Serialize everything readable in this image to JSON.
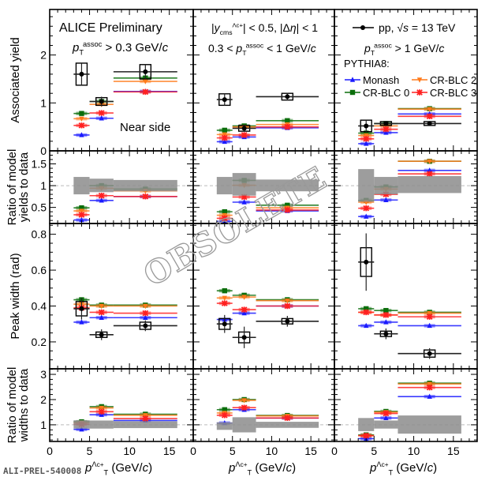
{
  "chart_data": {
    "type": "scatter",
    "title": "ALICE Preliminary",
    "x_bins": [
      [
        3,
        5
      ],
      [
        5,
        8
      ],
      [
        8,
        16
      ]
    ],
    "x_centers": [
      4,
      6.5,
      12
    ],
    "xlim": [
      0,
      18
    ],
    "x_ticks": [
      "0",
      "5",
      "10",
      "15"
    ],
    "xlabel": [
      {
        "t": "p",
        "i": true
      },
      {
        "t": "Λ",
        "sup": true
      },
      {
        "t": "c",
        "sup": true,
        "small": true
      },
      {
        "t": "+",
        "sup": true,
        "small": true
      },
      {
        "t": "T",
        "sub": true
      },
      {
        "t": " (GeV/"
      },
      {
        "t": "c",
        "i": true
      },
      {
        "t": ")"
      }
    ],
    "series_styles": {
      "data": {
        "color": "#000000",
        "marker": "circle"
      },
      "Monash": {
        "color": "#1a1aff",
        "marker": "triangle-up"
      },
      "CR-BLC 0": {
        "color": "#0b6e0b",
        "marker": "square"
      },
      "CR-BLC 2": {
        "color": "#ff7a1a",
        "marker": "triangle-down"
      },
      "CR-BLC 3": {
        "color": "#ff2020",
        "marker": "star"
      }
    },
    "rows": [
      {
        "ylabel": [
          "Associated yield"
        ],
        "ylim": [
          0,
          2.95
        ],
        "ticks": [
          0,
          1,
          2
        ],
        "tick_labels": [
          "0",
          "1",
          "2"
        ],
        "minor": 0.2
      },
      {
        "ylabel": [
          "Ratio of model",
          "yields to data"
        ],
        "ylim": [
          0.13,
          1.8
        ],
        "ticks": [
          0.5,
          1,
          1.5
        ],
        "tick_labels": [
          "0.5",
          "1",
          "1.5"
        ],
        "minor": 0.1,
        "ref_line": 1
      },
      {
        "ylabel": [
          "Peak width (rad)"
        ],
        "ylim": [
          0.05,
          0.86
        ],
        "ticks": [
          0.2,
          0.4,
          0.6,
          0.8
        ],
        "tick_labels": [
          "0.2",
          "0.4",
          "0.6",
          "0.8"
        ],
        "minor": 0.05
      },
      {
        "ylabel": [
          "Ratio of model",
          "widths to data"
        ],
        "ylim": [
          0.34,
          3.22
        ],
        "ticks": [
          1,
          2,
          3
        ],
        "tick_labels": [
          "1",
          "2",
          "3"
        ],
        "minor": 0.2,
        "ref_line": 1
      }
    ],
    "columns": [
      {
        "name": "pT assoc > 0.3 GeV/c",
        "yield": {
          "data": [
            1.6,
            1.03,
            1.65
          ],
          "stat": [
            0.22,
            0.1,
            0.15
          ],
          "sys": [
            0.23,
            0.08,
            0.15
          ],
          "Monash": [
            0.33,
            0.68,
            1.24
          ],
          "CR-BLC 0": [
            0.78,
            1.03,
            1.52
          ],
          "CR-BLC 2": [
            0.67,
            0.97,
            1.45
          ],
          "CR-BLC 3": [
            0.53,
            0.79,
            1.23
          ]
        },
        "yield_ratio": {
          "band": [
            [
              0.8,
              1.2
            ],
            [
              0.85,
              1.16
            ],
            [
              0.87,
              1.13
            ]
          ],
          "Monash": [
            0.21,
            0.66,
            0.75
          ],
          "CR-BLC 0": [
            0.49,
            1.0,
            0.92
          ],
          "CR-BLC 2": [
            0.42,
            0.94,
            0.88
          ],
          "CR-BLC 3": [
            0.33,
            0.77,
            0.75
          ]
        },
        "width": {
          "data": [
            0.385,
            0.24,
            0.29
          ],
          "stat": [
            0.06,
            0.03,
            0.03
          ],
          "sys": [
            0.04,
            0.015,
            0.02
          ],
          "Monash": [
            0.31,
            0.335,
            0.335
          ],
          "CR-BLC 0": [
            0.435,
            0.405,
            0.405
          ],
          "CR-BLC 2": [
            0.41,
            0.4,
            0.4
          ],
          "CR-BLC 3": [
            0.39,
            0.365,
            0.36
          ]
        },
        "width_ratio": {
          "band": [
            [
              0.85,
              1.18
            ],
            [
              0.85,
              1.17
            ],
            [
              0.87,
              1.14
            ]
          ],
          "Monash": [
            0.82,
            1.4,
            1.17
          ],
          "CR-BLC 0": [
            1.12,
            1.72,
            1.42
          ],
          "CR-BLC 2": [
            1.08,
            1.67,
            1.38
          ],
          "CR-BLC 3": [
            1.02,
            1.52,
            1.25
          ]
        }
      },
      {
        "name": "0.3 < pT assoc < 1 GeV/c",
        "yield": {
          "data": [
            1.07,
            0.47,
            1.13
          ],
          "stat": [
            0.13,
            0.06,
            0.08
          ],
          "sys": [
            0.12,
            0.06,
            0.07
          ],
          "Monash": [
            0.19,
            0.29,
            0.48
          ],
          "CR-BLC 0": [
            0.43,
            0.52,
            0.63
          ],
          "CR-BLC 2": [
            0.34,
            0.5,
            0.55
          ],
          "CR-BLC 3": [
            0.27,
            0.33,
            0.5
          ]
        },
        "yield_ratio": {
          "band": [
            [
              0.8,
              1.2
            ],
            [
              0.77,
              1.29
            ],
            [
              0.87,
              1.14
            ]
          ],
          "Monash": [
            0.18,
            0.62,
            0.42
          ],
          "CR-BLC 0": [
            0.4,
            1.12,
            0.55
          ],
          "CR-BLC 2": [
            0.32,
            1.01,
            0.49
          ],
          "CR-BLC 3": [
            0.25,
            0.74,
            0.44
          ]
        },
        "width": {
          "data": [
            0.3,
            0.225,
            0.315
          ],
          "stat": [
            0.05,
            0.06,
            0.03
          ],
          "sys": [
            0.03,
            0.03,
            0.015
          ],
          "Monash": [
            0.325,
            0.36,
            0.4
          ],
          "CR-BLC 0": [
            0.485,
            0.46,
            0.435
          ],
          "CR-BLC 2": [
            0.445,
            0.45,
            0.43
          ],
          "CR-BLC 3": [
            0.415,
            0.38,
            0.4
          ]
        },
        "width_ratio": {
          "band": [
            [
              0.8,
              1.1
            ],
            [
              0.7,
              1.3
            ],
            [
              0.88,
              1.12
            ]
          ],
          "Monash": [
            1.07,
            1.6,
            1.27
          ],
          "CR-BLC 0": [
            1.6,
            2.0,
            1.37
          ],
          "CR-BLC 2": [
            1.47,
            1.97,
            1.35
          ],
          "CR-BLC 3": [
            1.38,
            1.68,
            1.27
          ]
        }
      },
      {
        "name": "pT assoc > 1 GeV/c",
        "yield": {
          "data": [
            0.52,
            0.57,
            0.57
          ],
          "stat": [
            0.12,
            0.05,
            0.05
          ],
          "sys": [
            0.12,
            0.04,
            0.04
          ],
          "Monash": [
            0.15,
            0.38,
            0.77
          ],
          "CR-BLC 0": [
            0.37,
            0.57,
            0.88
          ],
          "CR-BLC 2": [
            0.32,
            0.52,
            0.87
          ],
          "CR-BLC 3": [
            0.25,
            0.45,
            0.72
          ]
        },
        "yield_ratio": {
          "band": [
            [
              0.63,
              1.38
            ],
            [
              0.8,
              1.2
            ],
            [
              0.83,
              1.22
            ]
          ],
          "Monash": [
            0.29,
            0.67,
            1.35
          ],
          "CR-BLC 0": [
            0.66,
            0.97,
            1.56
          ],
          "CR-BLC 2": [
            0.62,
            0.92,
            1.56
          ],
          "CR-BLC 3": [
            0.48,
            0.8,
            1.27
          ]
        },
        "width": {
          "data": [
            0.645,
            0.245,
            0.135
          ],
          "stat": [
            0.16,
            0.03,
            0.03
          ],
          "sys": [
            0.08,
            0.015,
            0.02
          ],
          "Monash": [
            0.29,
            0.31,
            0.29
          ],
          "CR-BLC 0": [
            0.385,
            0.375,
            0.365
          ],
          "CR-BLC 2": [
            0.365,
            0.35,
            0.36
          ],
          "CR-BLC 3": [
            0.365,
            0.35,
            0.34
          ]
        },
        "width_ratio": {
          "band": [
            [
              0.75,
              1.27
            ],
            [
              0.85,
              1.17
            ],
            [
              0.65,
              1.37
            ]
          ],
          "Monash": [
            0.45,
            1.27,
            2.12
          ],
          "CR-BLC 0": [
            0.6,
            1.53,
            2.65
          ],
          "CR-BLC 2": [
            0.57,
            1.5,
            2.62
          ],
          "CR-BLC 3": [
            0.57,
            1.45,
            2.48
          ]
        }
      }
    ]
  },
  "annotations": {
    "alice": "ALICE Preliminary",
    "near_side": "Near side",
    "cut1": [
      {
        "t": "p",
        "i": true
      },
      {
        "t": "T",
        "sub": true
      },
      {
        "t": "assoc",
        "sup": true
      },
      {
        "t": " > 0.3 GeV/"
      },
      {
        "t": "c",
        "i": true
      }
    ],
    "rapidity": [
      {
        "t": "|"
      },
      {
        "t": "y",
        "i": true
      },
      {
        "t": "cms",
        "sub": true
      },
      {
        "t": "Λc+",
        "sup": true,
        "small": true
      },
      {
        "t": "| < 0.5, |Δ"
      },
      {
        "t": "η",
        "i": true
      },
      {
        "t": "| < 1"
      }
    ],
    "cut2": [
      {
        "t": "0.3 < "
      },
      {
        "t": "p",
        "i": true
      },
      {
        "t": "T",
        "sub": true
      },
      {
        "t": "assoc",
        "sup": true
      },
      {
        "t": " < 1 GeV/"
      },
      {
        "t": "c",
        "i": true
      }
    ],
    "cut3": [
      {
        "t": "p",
        "i": true
      },
      {
        "t": "T",
        "sub": true
      },
      {
        "t": "assoc",
        "sup": true
      },
      {
        "t": " > 1 GeV/"
      },
      {
        "t": "c",
        "i": true
      }
    ],
    "data_legend": [
      {
        "t": "pp, √"
      },
      {
        "t": "s",
        "i": true
      },
      {
        "t": " = 13 TeV"
      }
    ],
    "pythia": "PYTHIA8:",
    "legend": [
      "Monash",
      "CR-BLC 2",
      "CR-BLC 0",
      "CR-BLC 3"
    ],
    "watermark": "OBSOLETE",
    "figure_id": "ALI-PREL-540008"
  }
}
